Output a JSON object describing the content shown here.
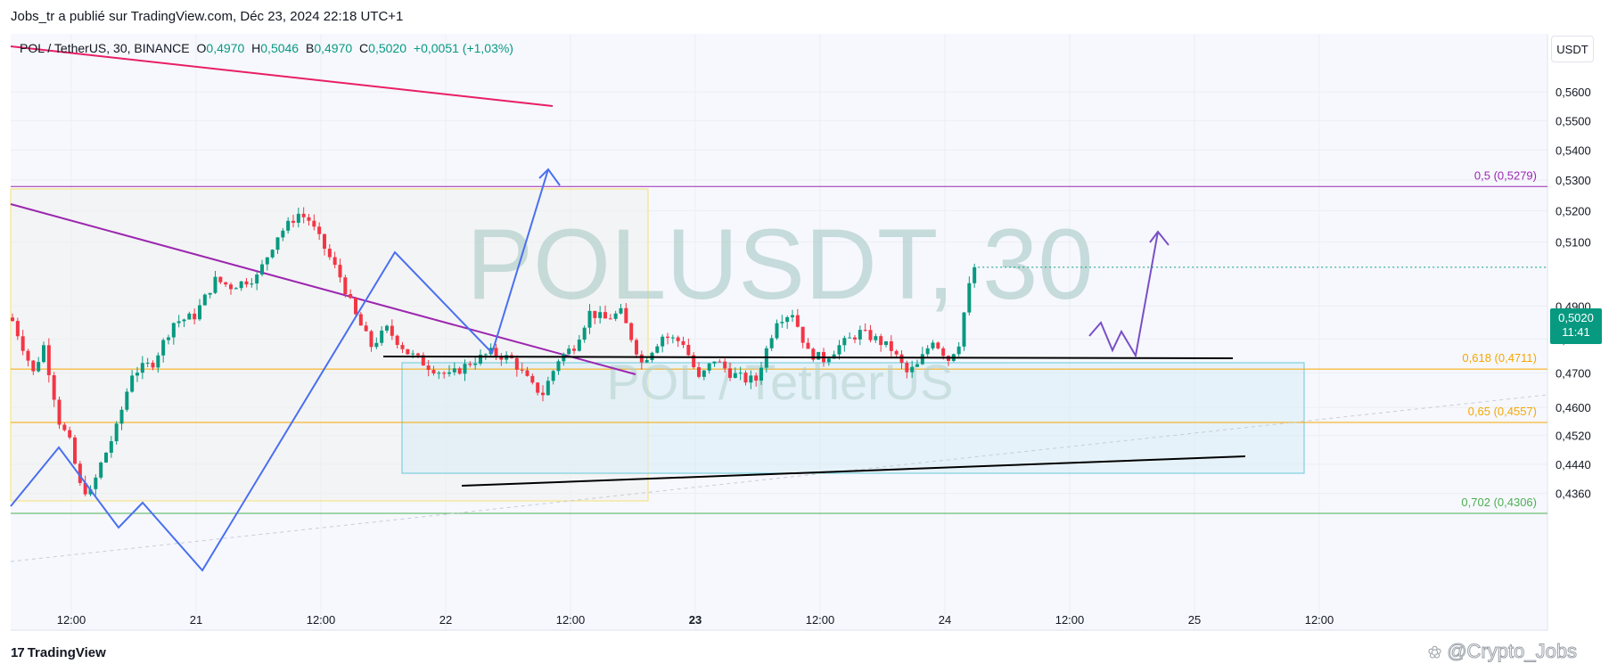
{
  "header": {
    "published_by": "Jobs_tr a publié sur TradingView.com, Déc 23, 2024 22:18 UTC+1"
  },
  "symbol_bar": {
    "symbol": "POL / TetherUS, 30, BINANCE",
    "open_label": "O",
    "open_value": "0,4970",
    "high_label": "H",
    "high_value": "0,5046",
    "low_label": "B",
    "low_value": "0,4970",
    "close_label": "C",
    "close_value": "0,5020",
    "change": "+0,0051 (+1,03%)"
  },
  "currency_button": "USDT",
  "watermark": {
    "main": "POLUSDT, 30",
    "sub": "POL / TetherUS"
  },
  "last_price": {
    "price": "0,5020",
    "countdown": "11:41"
  },
  "footer": {
    "logo_text": "TradingView",
    "author_watermark": "@Crypto_Jobs"
  },
  "colors": {
    "up": "#089981",
    "down": "#f23645",
    "fib_orange": "#f7a600",
    "fib_purple": "#9c27b0",
    "fib_green": "#4caf50",
    "trend_pink": "#e91e63",
    "projection_blue": "#2962ff",
    "projection_purple": "#673ab7",
    "watermark": "#b2cfcc"
  },
  "chart_data": {
    "type": "candlestick",
    "symbol": "POLUSDT",
    "interval": "30",
    "exchange": "BINANCE",
    "y_axis": {
      "scale": "log",
      "range": [
        0.4306,
        0.575
      ],
      "ticks": [
        "0,5600",
        "0,5500",
        "0,5400",
        "0,5300",
        "0,5200",
        "0,5100",
        "0,4900",
        "0,4800",
        "0,4700",
        "0,4600",
        "0,4520",
        "0,4440",
        "0,4360"
      ]
    },
    "x_axis": {
      "ticks": [
        "12:00",
        "21",
        "12:00",
        "22",
        "12:00",
        "23",
        "12:00",
        "24",
        "12:00",
        "25",
        "12:00"
      ],
      "bold_ticks": [
        "23"
      ]
    },
    "fib_levels": [
      {
        "label": "0,5 (0,5279)",
        "price": 0.5279,
        "color": "#9c27b0"
      },
      {
        "label": "0,618 (0,4711)",
        "price": 0.4711,
        "color": "#f7a600"
      },
      {
        "label": "0,65 (0,4557)",
        "price": 0.4557,
        "color": "#f7a600"
      },
      {
        "label": "0,702 (0,4306)",
        "price": 0.4306,
        "color": "#4caf50"
      }
    ],
    "last_close": 0.502,
    "anchors": [
      {
        "t": 0,
        "p": 0.4855
      },
      {
        "t": 4,
        "p": 0.47
      },
      {
        "t": 6,
        "p": 0.478
      },
      {
        "t": 9,
        "p": 0.456
      },
      {
        "t": 11,
        "p": 0.45
      },
      {
        "t": 13,
        "p": 0.438
      },
      {
        "t": 15,
        "p": 0.436
      },
      {
        "t": 17,
        "p": 0.444
      },
      {
        "t": 20,
        "p": 0.454
      },
      {
        "t": 23,
        "p": 0.47
      },
      {
        "t": 27,
        "p": 0.473
      },
      {
        "t": 31,
        "p": 0.485
      },
      {
        "t": 35,
        "p": 0.487
      },
      {
        "t": 39,
        "p": 0.498
      },
      {
        "t": 42,
        "p": 0.496
      },
      {
        "t": 47,
        "p": 0.499
      },
      {
        "t": 51,
        "p": 0.512
      },
      {
        "t": 55,
        "p": 0.519
      },
      {
        "t": 57,
        "p": 0.517
      },
      {
        "t": 60,
        "p": 0.508
      },
      {
        "t": 63,
        "p": 0.499
      },
      {
        "t": 66,
        "p": 0.487
      },
      {
        "t": 69,
        "p": 0.478
      },
      {
        "t": 72,
        "p": 0.483
      },
      {
        "t": 76,
        "p": 0.476
      },
      {
        "t": 80,
        "p": 0.472
      },
      {
        "t": 84,
        "p": 0.469
      },
      {
        "t": 88,
        "p": 0.473
      },
      {
        "t": 92,
        "p": 0.476
      },
      {
        "t": 96,
        "p": 0.474
      },
      {
        "t": 100,
        "p": 0.466
      },
      {
        "t": 102,
        "p": 0.464
      },
      {
        "t": 105,
        "p": 0.474
      },
      {
        "t": 108,
        "p": 0.478
      },
      {
        "t": 111,
        "p": 0.488
      },
      {
        "t": 114,
        "p": 0.486
      },
      {
        "t": 117,
        "p": 0.488
      },
      {
        "t": 121,
        "p": 0.473
      },
      {
        "t": 125,
        "p": 0.481
      },
      {
        "t": 129,
        "p": 0.479
      },
      {
        "t": 132,
        "p": 0.468
      },
      {
        "t": 135,
        "p": 0.474
      },
      {
        "t": 138,
        "p": 0.47
      },
      {
        "t": 141,
        "p": 0.468
      },
      {
        "t": 143,
        "p": 0.468
      },
      {
        "t": 147,
        "p": 0.486
      },
      {
        "t": 150,
        "p": 0.488
      },
      {
        "t": 153,
        "p": 0.476
      },
      {
        "t": 156,
        "p": 0.474
      },
      {
        "t": 159,
        "p": 0.478
      },
      {
        "t": 163,
        "p": 0.482
      },
      {
        "t": 166,
        "p": 0.48
      },
      {
        "t": 169,
        "p": 0.477
      },
      {
        "t": 172,
        "p": 0.47
      },
      {
        "t": 174,
        "p": 0.472
      },
      {
        "t": 177,
        "p": 0.48
      },
      {
        "t": 180,
        "p": 0.474
      },
      {
        "t": 182,
        "p": 0.479
      },
      {
        "t": 183,
        "p": 0.488
      },
      {
        "t": 184,
        "p": 0.496
      },
      {
        "t": 185,
        "p": 0.502
      }
    ]
  }
}
